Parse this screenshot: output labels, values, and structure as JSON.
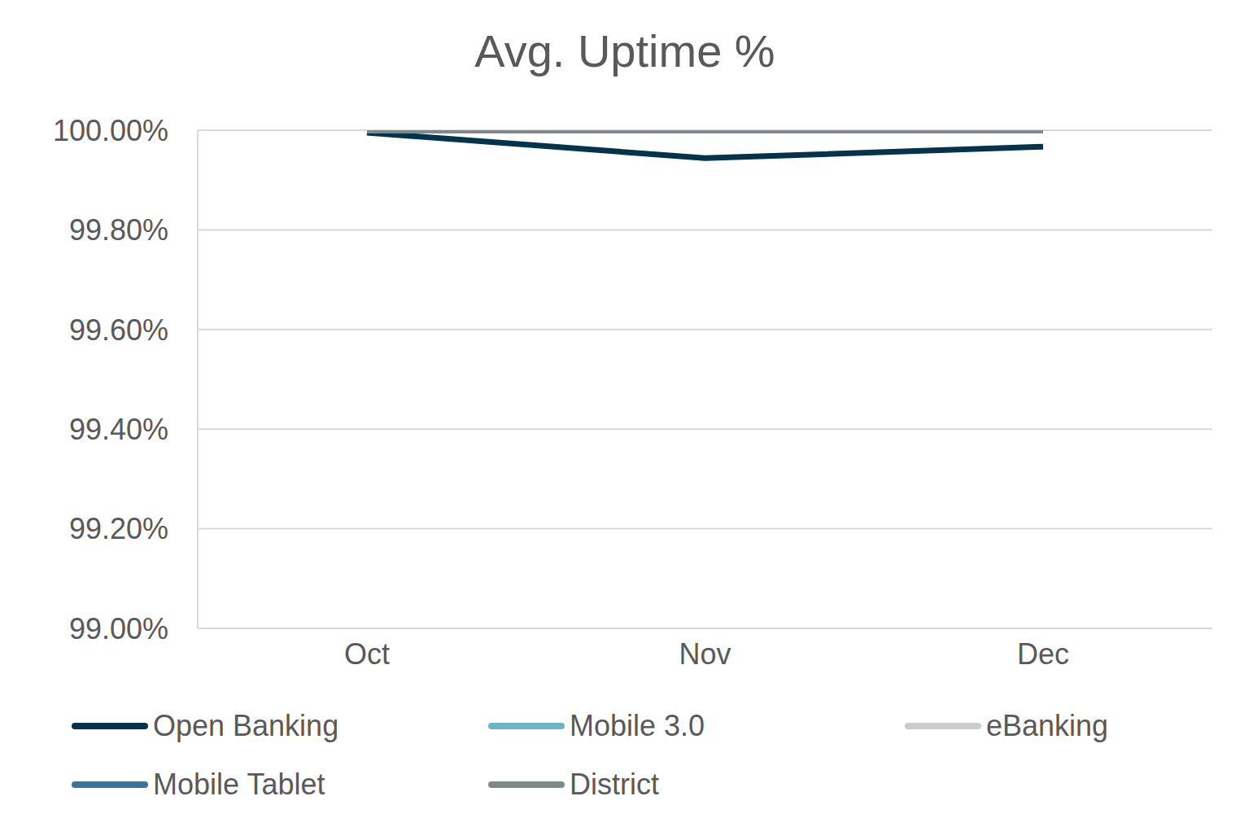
{
  "chart_data": {
    "type": "line",
    "title": "Avg. Uptime %",
    "categories": [
      "Oct",
      "Nov",
      "Dec"
    ],
    "series": [
      {
        "name": "Open Banking",
        "color": "#04344d",
        "values": [
          99.995,
          99.944,
          99.967
        ]
      },
      {
        "name": "Mobile 3.0",
        "color": "#6bb5c7",
        "values": [
          100,
          100,
          100
        ]
      },
      {
        "name": "eBanking",
        "color": "#c9cdcc",
        "values": [
          100,
          100,
          100
        ]
      },
      {
        "name": "Mobile Tablet",
        "color": "#3c7396",
        "values": [
          100,
          100,
          100
        ]
      },
      {
        "name": "District",
        "color": "#80878a",
        "values": [
          100,
          100,
          100
        ]
      }
    ],
    "ylim": [
      99,
      100
    ],
    "yticks": [
      {
        "value": 99,
        "label": "99.00%"
      },
      {
        "value": 99.2,
        "label": "99.20%"
      },
      {
        "value": 99.4,
        "label": "99.40%"
      },
      {
        "value": 99.6,
        "label": "99.60%"
      },
      {
        "value": 99.8,
        "label": "99.80%"
      },
      {
        "value": 100,
        "label": "100.00%"
      }
    ],
    "grid": true,
    "legend": "bottom"
  }
}
